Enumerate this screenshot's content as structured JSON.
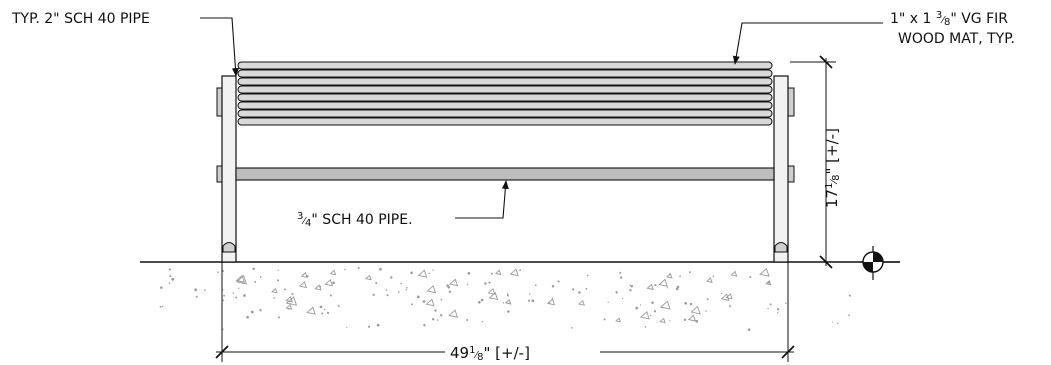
{
  "labels": {
    "pipe_main": "TYP. 2\"  SCH 40 PIPE",
    "mat_line1_pre": "1\" x 1 ",
    "mat_line1_num": "3",
    "mat_line1_den": "8",
    "mat_line1_post": "\" VG FIR",
    "mat_line2": "WOOD MAT, TYP.",
    "pipe_small_num": "3",
    "pipe_small_den": "4",
    "pipe_small_post": "\" SCH 40 PIPE."
  },
  "dimensions": {
    "height_whole": "17",
    "height_num": "1",
    "height_den": "8",
    "height_post": "\" [+/-]",
    "width_whole": "49",
    "width_num": "1",
    "width_den": "8",
    "width_post": "\" [+/-]"
  },
  "colors": {
    "line": "#111111",
    "slat_fill": "#d9d9d9",
    "rail_fill": "#bdbdbd",
    "post_fill": "#f2f2f2",
    "gravel": "#9a9a9a"
  }
}
